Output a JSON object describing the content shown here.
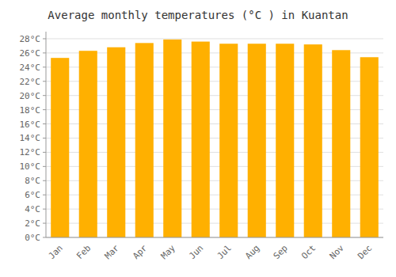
{
  "chart_data": {
    "type": "bar",
    "title": "Average monthly temperatures (°C ) in Kuantan",
    "categories": [
      "Jan",
      "Feb",
      "Mar",
      "Apr",
      "May",
      "Jun",
      "Jul",
      "Aug",
      "Sep",
      "Oct",
      "Nov",
      "Dec"
    ],
    "values": [
      25.3,
      26.3,
      26.8,
      27.4,
      27.9,
      27.6,
      27.3,
      27.3,
      27.3,
      27.2,
      26.4,
      25.4
    ],
    "color": "#FFB000",
    "ylim": [
      0,
      29
    ],
    "yticks": [
      {
        "value": 0,
        "label": "0°C"
      },
      {
        "value": 2,
        "label": "2°C"
      },
      {
        "value": 4,
        "label": "4°C"
      },
      {
        "value": 6,
        "label": "6°C"
      },
      {
        "value": 8,
        "label": "8°C"
      },
      {
        "value": 10,
        "label": "10°C"
      },
      {
        "value": 12,
        "label": "12°C"
      },
      {
        "value": 14,
        "label": "14°C"
      },
      {
        "value": 16,
        "label": "16°C"
      },
      {
        "value": 18,
        "label": "18°C"
      },
      {
        "value": 20,
        "label": "20°C"
      },
      {
        "value": 22,
        "label": "22°C"
      },
      {
        "value": 24,
        "label": "24°C"
      },
      {
        "value": 26,
        "label": "26°C"
      },
      {
        "value": 28,
        "label": "28°C"
      }
    ],
    "grid": true
  }
}
